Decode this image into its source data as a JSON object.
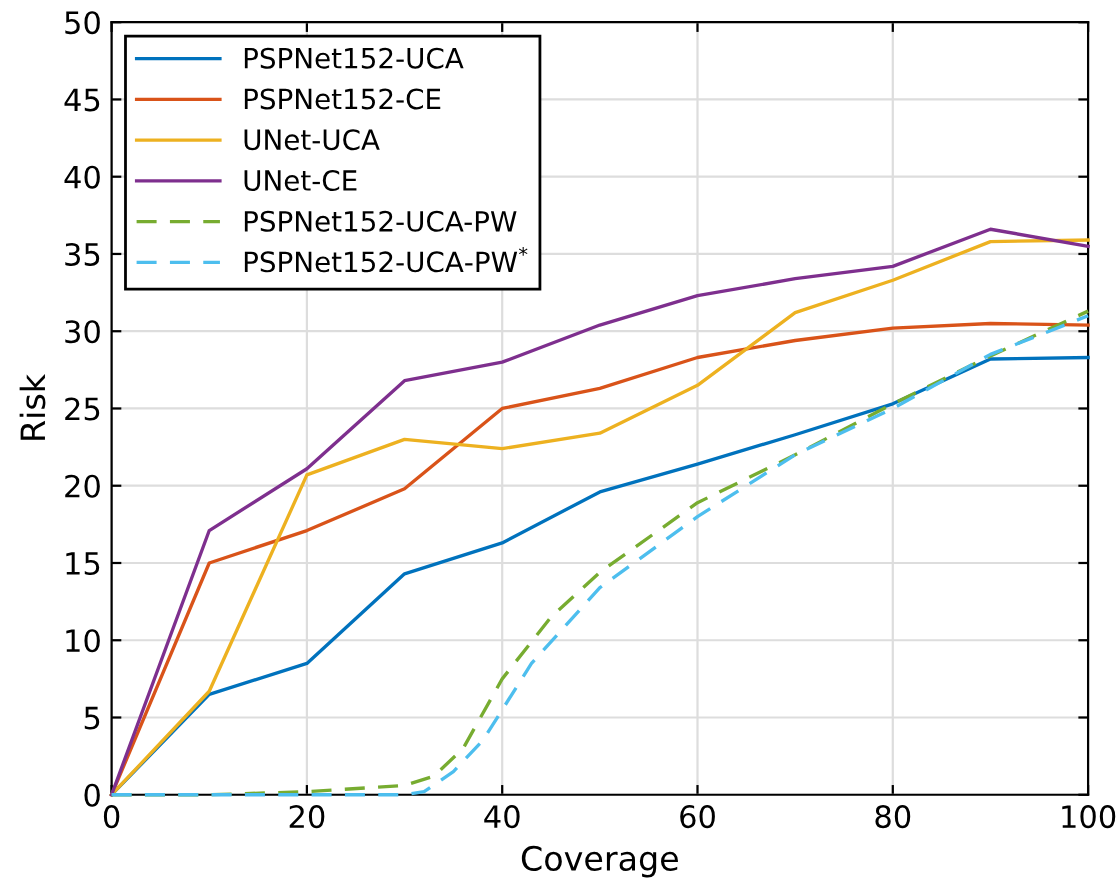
{
  "chart_data": {
    "type": "line",
    "xlabel": "Coverage",
    "ylabel": "Risk",
    "xlim": [
      0,
      100
    ],
    "ylim": [
      0,
      50
    ],
    "xticks": [
      0,
      20,
      40,
      60,
      80,
      100
    ],
    "yticks": [
      0,
      5,
      10,
      15,
      20,
      25,
      30,
      35,
      40,
      45,
      50
    ],
    "grid": true,
    "legend": "top left",
    "x": [
      0,
      10,
      20,
      30,
      40,
      50,
      60,
      70,
      80,
      90,
      100
    ],
    "series": [
      {
        "name": "PSPNet152-UCA",
        "color": "#0072bd",
        "values": [
          0,
          6.5,
          8.5,
          14.3,
          16.3,
          19.6,
          21.4,
          23.3,
          25.3,
          28.2,
          28.3
        ]
      },
      {
        "name": "PSPNet152-CE",
        "color": "#d95319",
        "values": [
          0,
          15,
          17.1,
          19.8,
          25,
          26.3,
          28.3,
          29.4,
          30.2,
          30.5,
          30.4
        ]
      },
      {
        "name": "UNet-UCA",
        "color": "#edb120",
        "values": [
          0,
          6.7,
          20.7,
          23,
          22.4,
          23.4,
          26.5,
          31.2,
          33.3,
          35.8,
          35.9
        ]
      },
      {
        "name": "UNet-CE",
        "color": "#7e2f8e",
        "values": [
          0,
          17.1,
          21.1,
          26.8,
          28.0,
          30.4,
          32.3,
          33.4,
          34.2,
          36.6,
          35.5
        ]
      },
      {
        "name": "PSPNet152-UCA-PW",
        "color": "#77ac30",
        "line_style": "dashed",
        "x": [
          0,
          10,
          20,
          30,
          33,
          36,
          40,
          45,
          50,
          60,
          70,
          80,
          90,
          100
        ],
        "values": [
          0,
          0,
          0.2,
          0.6,
          1.2,
          3,
          7.5,
          11.5,
          14.4,
          18.9,
          22,
          25.3,
          28.4,
          31.3
        ]
      },
      {
        "name": "PSPNet152-UCA-PW$^{*}$",
        "color": "#4dbeee",
        "line_style": "dashed",
        "x": [
          0,
          10,
          20,
          30,
          32,
          35,
          38,
          40,
          43,
          50,
          60,
          70,
          80,
          90,
          100
        ],
        "values": [
          0,
          0,
          0,
          0,
          0.2,
          1.5,
          3.5,
          5.5,
          8.5,
          13.4,
          18,
          22,
          25,
          28.5,
          31
        ]
      }
    ]
  }
}
